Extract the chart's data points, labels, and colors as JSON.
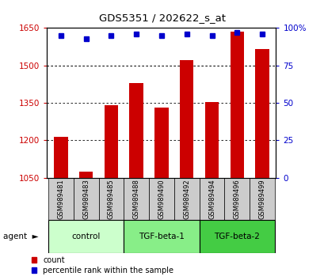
{
  "title": "GDS5351 / 202622_s_at",
  "samples": [
    "GSM989481",
    "GSM989483",
    "GSM989485",
    "GSM989488",
    "GSM989490",
    "GSM989492",
    "GSM989494",
    "GSM989496",
    "GSM989499"
  ],
  "bar_values": [
    1215,
    1075,
    1340,
    1430,
    1330,
    1520,
    1355,
    1635,
    1565
  ],
  "percentile_values": [
    95,
    93,
    95,
    96,
    95,
    96,
    95,
    97,
    96
  ],
  "ylim_left": [
    1050,
    1650
  ],
  "ylim_right": [
    0,
    100
  ],
  "yticks_left": [
    1050,
    1200,
    1350,
    1500,
    1650
  ],
  "yticks_right": [
    0,
    25,
    50,
    75,
    100
  ],
  "bar_color": "#cc0000",
  "dot_color": "#0000cc",
  "groups": [
    {
      "label": "control",
      "start": 0,
      "end": 3,
      "color": "#ccffcc"
    },
    {
      "label": "TGF-beta-1",
      "start": 3,
      "end": 6,
      "color": "#88ee88"
    },
    {
      "label": "TGF-beta-2",
      "start": 6,
      "end": 9,
      "color": "#44cc44"
    }
  ],
  "agent_label": "agent",
  "legend_count_label": "count",
  "legend_percentile_label": "percentile rank within the sample",
  "plot_bg": "#ffffff",
  "sample_label_bg": "#cccccc",
  "bar_width": 0.55,
  "fig_width": 4.1,
  "fig_height": 3.54,
  "dpi": 100
}
